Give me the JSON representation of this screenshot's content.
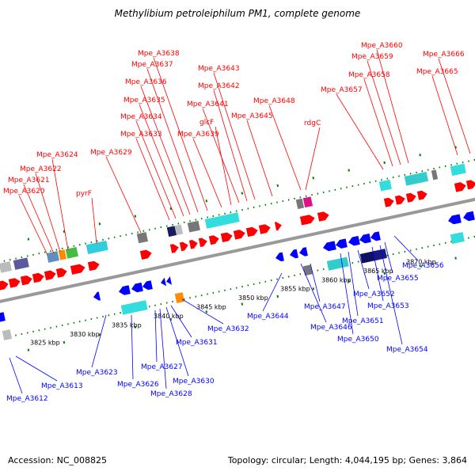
{
  "title": "Methylibium petroleiphilum PM1, complete genome",
  "accession": "Accession: NC_008825",
  "summary": "Topology: circular; Length: 4,044,195 bp; Genes: 3,864",
  "colors": {
    "forward": "#ff0000",
    "reverse": "#0000ff",
    "backbone": "#999999",
    "dots": "#008000"
  },
  "scale_ticks": [
    "3825 kbp",
    "3830 kbp",
    "3835 kbp",
    "3840 kbp",
    "3845 kbp",
    "3850 kbp",
    "3855 kbp",
    "3860 kbp",
    "3865 kbp",
    "3870 kbp"
  ],
  "forward_labels": [
    "Mpe_A3620",
    "Mpe_A3621",
    "Mpe_A3622",
    "Mpe_A3624",
    "pyrF",
    "Mpe_A3629",
    "Mpe_A3633",
    "Mpe_A3634",
    "Mpe_A3635",
    "Mpe_A3636",
    "Mpe_A3637",
    "Mpe_A3638",
    "Mpe_A3639",
    "glcF",
    "Mpe_A3641",
    "Mpe_A3642",
    "Mpe_A3643",
    "Mpe_A3645",
    "Mpe_A3648",
    "rdgC",
    "Mpe_A3657",
    "Mpe_A3658",
    "Mpe_A3659",
    "Mpe_A3660",
    "Mpe_A3665",
    "Mpe_A3666"
  ],
  "reverse_labels": [
    "Mpe_A3612",
    "Mpe_A3613",
    "Mpe_A3623",
    "Mpe_A3626",
    "Mpe_A3627",
    "Mpe_A3628",
    "Mpe_A3630",
    "Mpe_A3631",
    "Mpe_A3632",
    "Mpe_A3644",
    "Mpe_A3646",
    "Mpe_A3647",
    "Mpe_A3650",
    "Mpe_A3651",
    "Mpe_A3652",
    "Mpe_A3653",
    "Mpe_A3654",
    "Mpe_A3655",
    "Mpe_A3656"
  ]
}
